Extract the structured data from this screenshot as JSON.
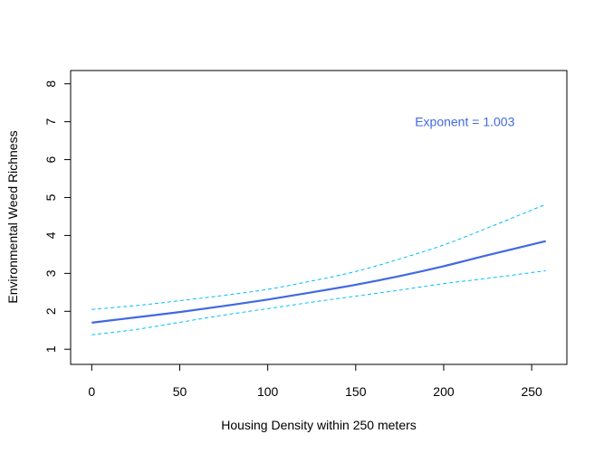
{
  "chart_data": {
    "type": "line",
    "title": "",
    "xlabel": "Housing Density within 250 meters",
    "ylabel": "Environmental Weed Richness",
    "xlim": [
      -12,
      270
    ],
    "ylim": [
      0.6,
      8.35
    ],
    "xticks": [
      0,
      50,
      100,
      150,
      200,
      250
    ],
    "yticks": [
      1,
      2,
      3,
      4,
      5,
      6,
      7,
      8
    ],
    "grid": false,
    "legend": "none",
    "annotation": {
      "text": "Exponent =  1.003",
      "x": 212,
      "y": 7.0,
      "color": "#4169e1"
    },
    "series": [
      {
        "role": "fit",
        "color": "#4169e1",
        "style": "solid",
        "x": [
          0,
          25,
          50,
          75,
          100,
          125,
          150,
          175,
          200,
          225,
          258
        ],
        "y": [
          1.7,
          1.84,
          1.98,
          2.14,
          2.31,
          2.5,
          2.7,
          2.93,
          3.19,
          3.48,
          3.85
        ]
      },
      {
        "role": "upper",
        "color": "#00bfff",
        "style": "dashed",
        "x": [
          0,
          25,
          50,
          75,
          100,
          125,
          150,
          175,
          200,
          225,
          258
        ],
        "y": [
          2.05,
          2.15,
          2.28,
          2.42,
          2.58,
          2.8,
          3.05,
          3.38,
          3.75,
          4.2,
          4.82
        ]
      },
      {
        "role": "lower",
        "color": "#00bfff",
        "style": "dashed",
        "x": [
          0,
          25,
          50,
          75,
          100,
          125,
          150,
          175,
          200,
          225,
          258
        ],
        "y": [
          1.38,
          1.52,
          1.71,
          1.9,
          2.07,
          2.24,
          2.4,
          2.56,
          2.73,
          2.87,
          3.07
        ]
      }
    ]
  }
}
